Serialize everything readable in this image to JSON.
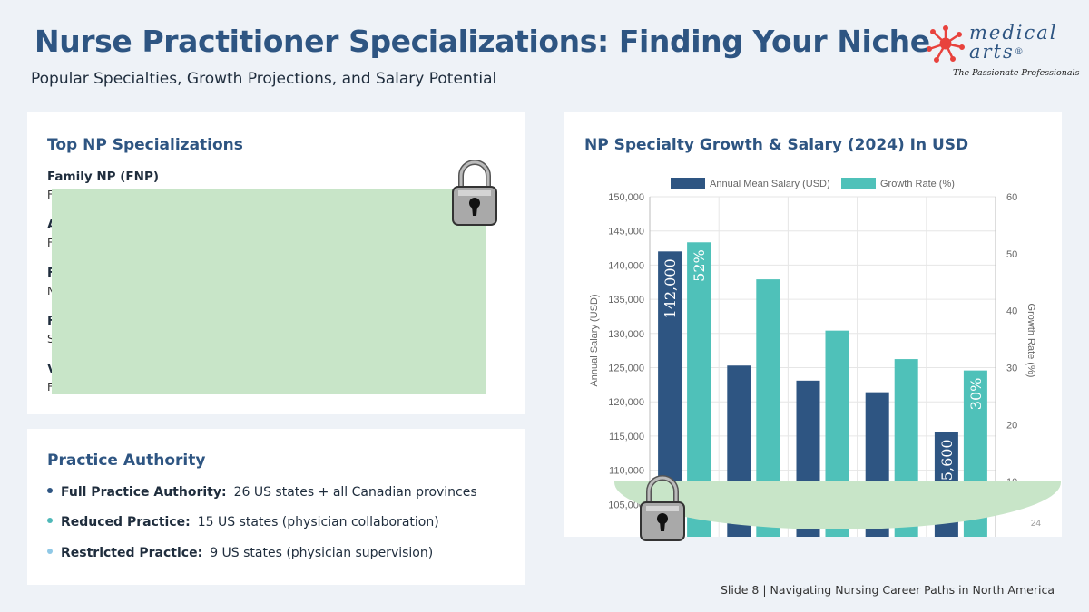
{
  "header": {
    "title": "Nurse Practitioner Specializations: Finding Your Niche",
    "subtitle": "Popular Specialties, Growth Projections, and Salary Potential"
  },
  "logo": {
    "line1": "medical",
    "line2": "arts",
    "mark": "®",
    "tagline": "The Passionate Professionals"
  },
  "specializations": {
    "title": "Top NP Specializations",
    "items": [
      {
        "name": "Family NP (FNP)",
        "detail": "F"
      },
      {
        "name": "A",
        "detail": "F"
      },
      {
        "name": "F",
        "detail": "N"
      },
      {
        "name": "F",
        "detail": "S"
      },
      {
        "name": "V",
        "detail": "F"
      }
    ]
  },
  "practice_authority": {
    "title": "Practice Authority",
    "items": [
      {
        "label": "Full Practice Authority:",
        "value": "26 US states + all Canadian provinces",
        "color": "#2e5582"
      },
      {
        "label": "Reduced Practice:",
        "value": "15 US states (physician collaboration)",
        "color": "#4fb8b8"
      },
      {
        "label": "Restricted Practice:",
        "value": "9 US states (physician supervision)",
        "color": "#8fc8e6"
      }
    ]
  },
  "chart_title": "NP Specialty Growth & Salary (2024) In USD",
  "chart_data": {
    "type": "bar",
    "categories": [
      "",
      "",
      "",
      "",
      ""
    ],
    "series": [
      {
        "name": "Annual Mean Salary (USD)",
        "values": [
          142000,
          125300,
          123100,
          121400,
          115600
        ],
        "color": "#2e5582",
        "axis": "left"
      },
      {
        "name": "Growth Rate (%)",
        "values": [
          52,
          45.5,
          36.5,
          31.5,
          29.5
        ],
        "color": "#4fc1b9",
        "axis": "right"
      }
    ],
    "data_labels": [
      {
        "series": 0,
        "index": 0,
        "text": "142,000"
      },
      {
        "series": 1,
        "index": 0,
        "text": "52%"
      },
      {
        "series": 0,
        "index": 4,
        "text": "115,600"
      },
      {
        "series": 1,
        "index": 4,
        "text": "30%"
      }
    ],
    "ylabel": "Annual Salary (USD)",
    "y2label": "Growth Rate (%)",
    "ylim": [
      100000,
      150000
    ],
    "y2lim": [
      0,
      60
    ],
    "yticks": [
      "105,000",
      "110,000",
      "115,000",
      "120,000",
      "125,000",
      "130,000",
      "135,000",
      "140,000",
      "145,000",
      "150,000"
    ],
    "ytick_values": [
      105000,
      110000,
      115000,
      120000,
      125000,
      130000,
      135000,
      140000,
      145000,
      150000
    ],
    "y2ticks": [
      "10",
      "20",
      "30",
      "40",
      "50",
      "60"
    ],
    "y2tick_values": [
      10,
      20,
      30,
      40,
      50,
      60
    ],
    "partial_texts": {
      "ytick_bottom": "1(",
      "source": "24"
    },
    "legend": "top",
    "grid": true
  },
  "footer": "Slide 8 | Navigating Nursing Career Paths in North America"
}
